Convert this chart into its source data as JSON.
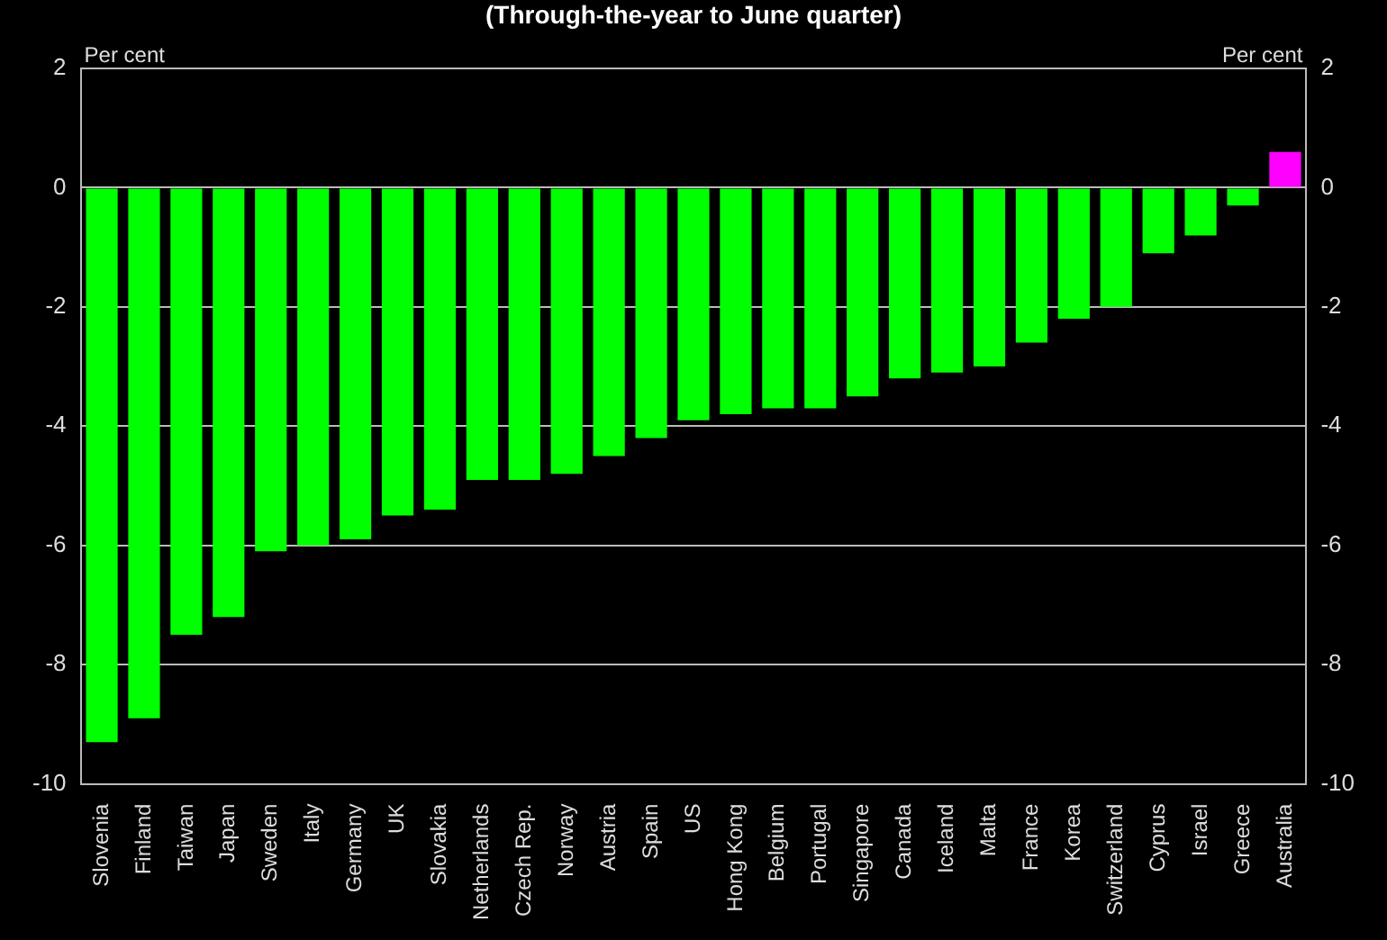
{
  "chart_data": {
    "type": "bar",
    "title": "(Through-the-year to June quarter)",
    "ylabel": "Per cent",
    "y2label": "Per cent",
    "categories": [
      "Slovenia",
      "Finland",
      "Taiwan",
      "Japan",
      "Sweden",
      "Italy",
      "Germany",
      "UK",
      "Slovakia",
      "Netherlands",
      "Czech Rep.",
      "Norway",
      "Austria",
      "Spain",
      "US",
      "Hong Kong",
      "Belgium",
      "Portugal",
      "Singapore",
      "Canada",
      "Iceland",
      "Malta",
      "France",
      "Korea",
      "Switzerland",
      "Cyprus",
      "Israel",
      "Greece",
      "Australia"
    ],
    "values": [
      -9.3,
      -8.9,
      -7.5,
      -7.2,
      -6.1,
      -6.0,
      -5.9,
      -5.5,
      -5.4,
      -4.9,
      -4.9,
      -4.8,
      -4.5,
      -4.2,
      -3.9,
      -3.8,
      -3.7,
      -3.7,
      -3.5,
      -3.2,
      -3.1,
      -3.0,
      -2.6,
      -2.2,
      -2.0,
      -1.1,
      -0.8,
      -0.3,
      0.6
    ],
    "colors": [
      "#00ff00",
      "#00ff00",
      "#00ff00",
      "#00ff00",
      "#00ff00",
      "#00ff00",
      "#00ff00",
      "#00ff00",
      "#00ff00",
      "#00ff00",
      "#00ff00",
      "#00ff00",
      "#00ff00",
      "#00ff00",
      "#00ff00",
      "#00ff00",
      "#00ff00",
      "#00ff00",
      "#00ff00",
      "#00ff00",
      "#00ff00",
      "#00ff00",
      "#00ff00",
      "#00ff00",
      "#00ff00",
      "#00ff00",
      "#00ff00",
      "#00ff00",
      "#ff00ff"
    ],
    "ylim": [
      -10,
      2
    ],
    "yticks": [
      -10,
      -8,
      -6,
      -4,
      -2,
      0,
      2
    ],
    "y2lim": [
      -10,
      2
    ],
    "y2ticks": [
      -10,
      -8,
      -6,
      -4,
      -2,
      0,
      2
    ],
    "grid": "y",
    "legend": false
  }
}
